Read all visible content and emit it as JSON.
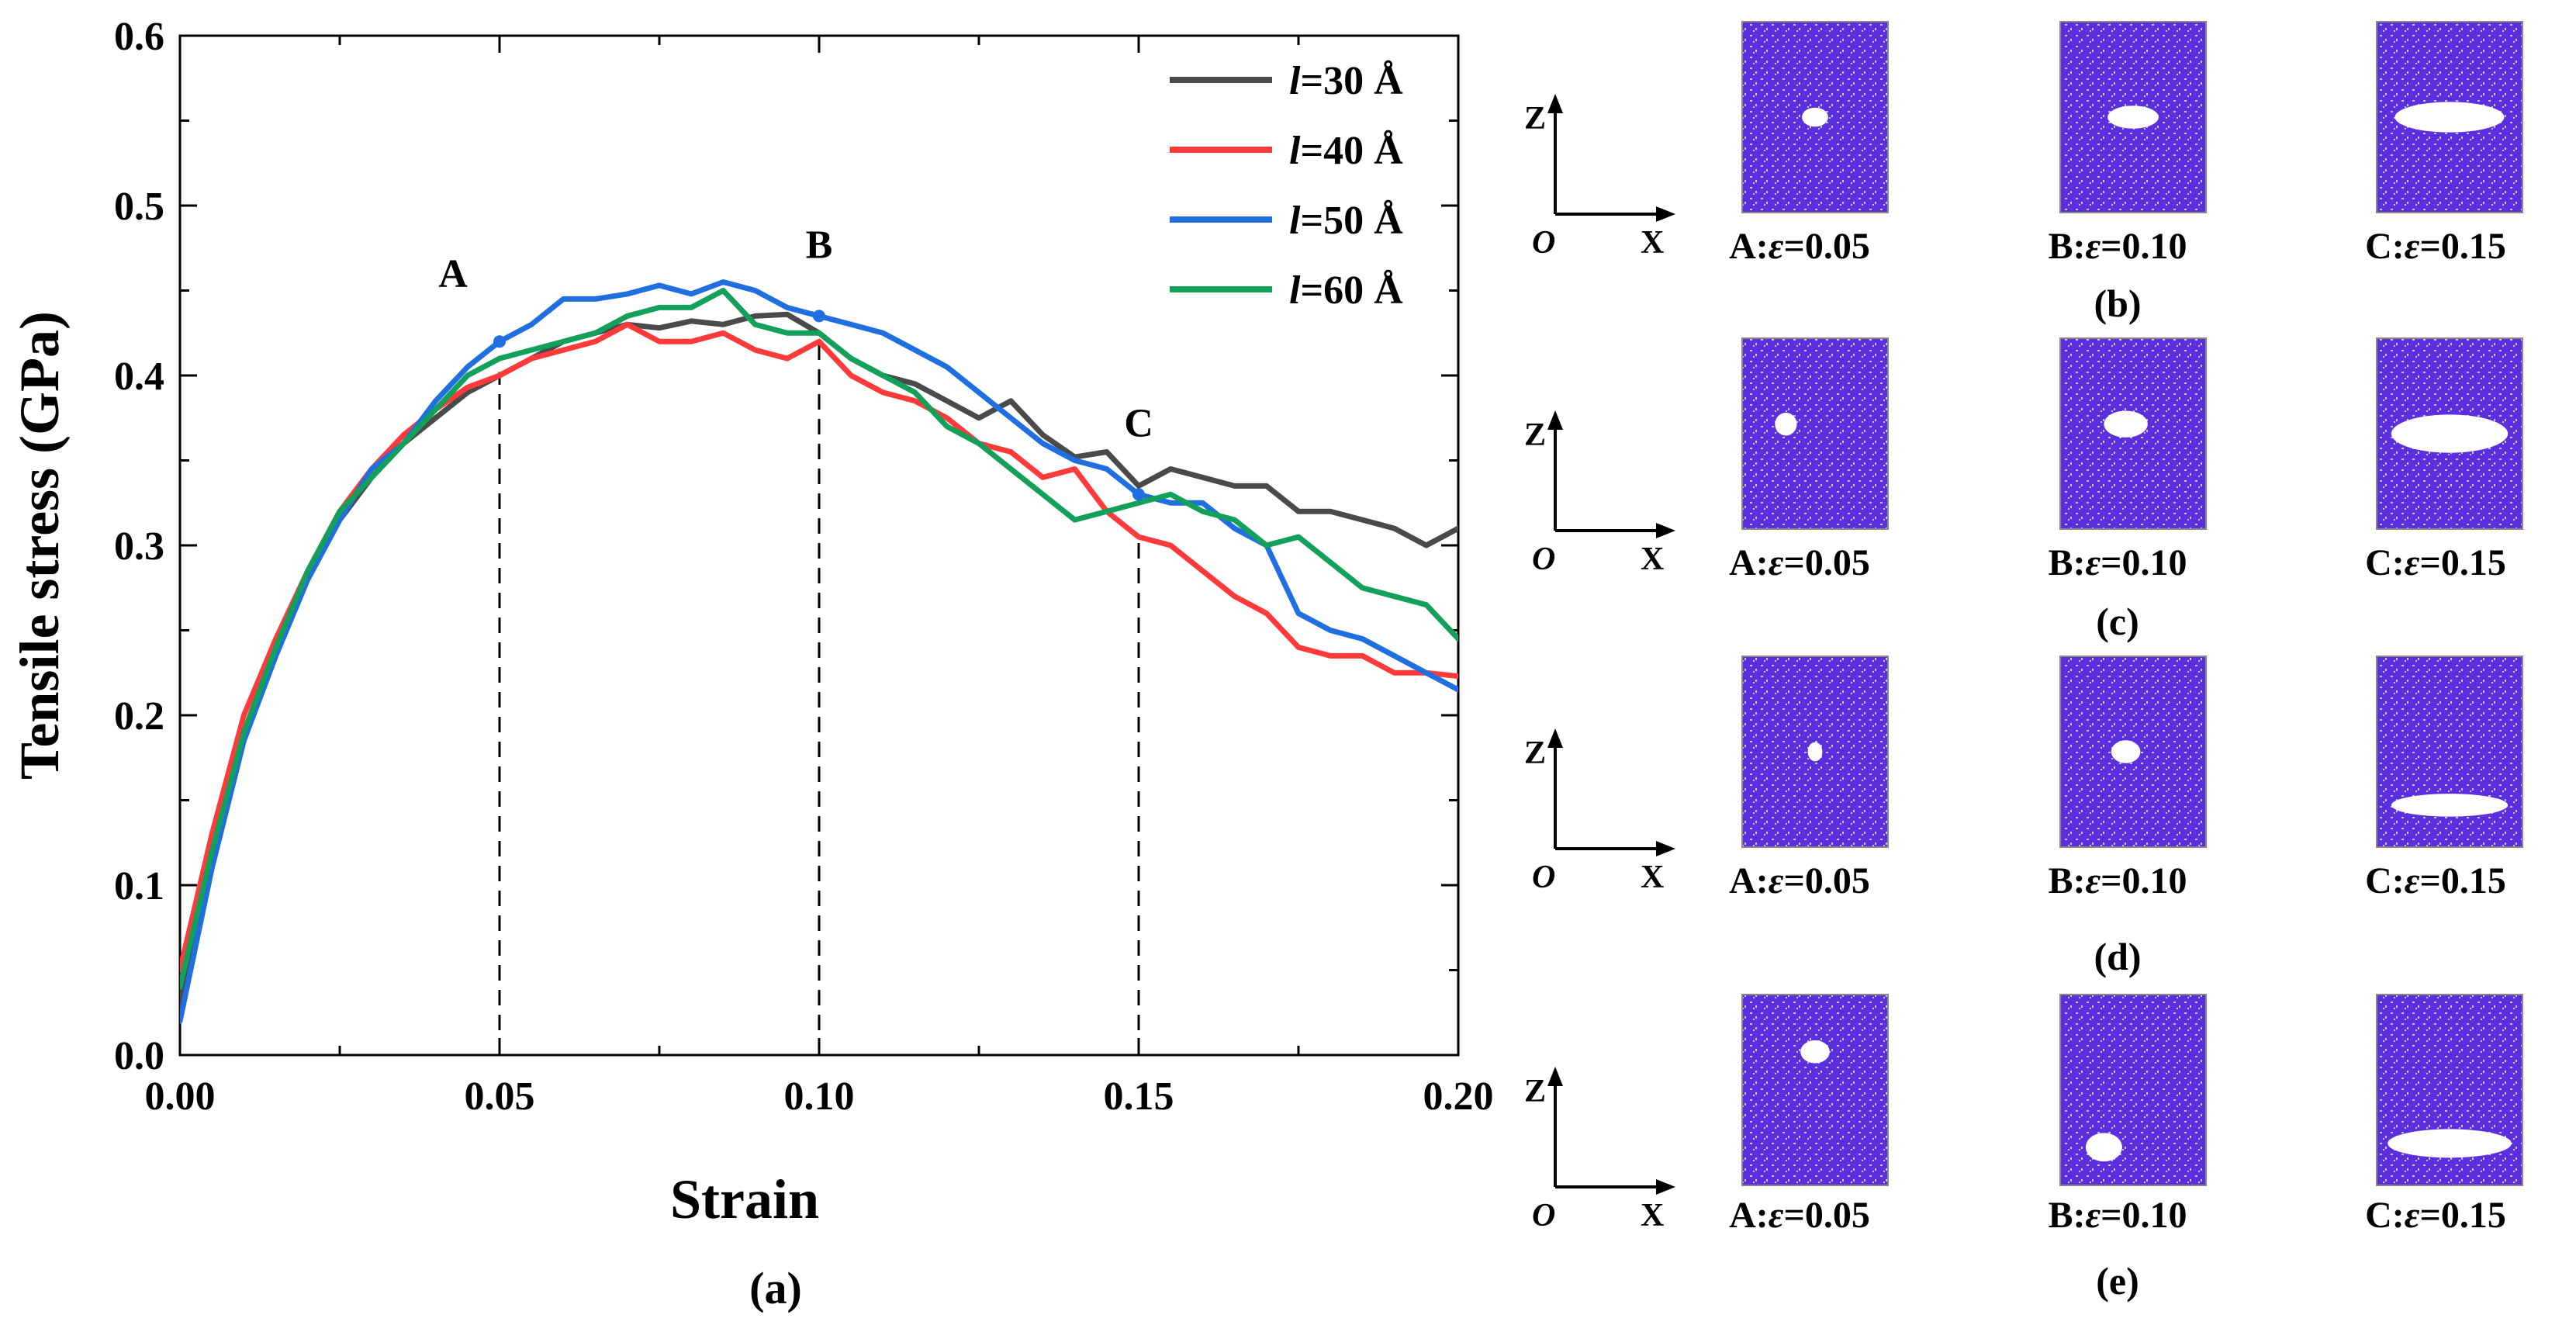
{
  "chart_data": {
    "type": "line",
    "panel_label": "(a)",
    "xlabel": "Strain",
    "ylabel": "Tensile stress (GPa)",
    "xlim": [
      0.0,
      0.2
    ],
    "ylim": [
      0.0,
      0.6
    ],
    "xticks": [
      0.0,
      0.05,
      0.1,
      0.15,
      0.2
    ],
    "yticks": [
      0.0,
      0.1,
      0.2,
      0.3,
      0.4,
      0.5,
      0.6
    ],
    "xtick_labels": [
      "0.00",
      "0.05",
      "0.10",
      "0.15",
      "0.20"
    ],
    "ytick_labels": [
      "0.0",
      "0.1",
      "0.2",
      "0.3",
      "0.4",
      "0.5",
      "0.6"
    ],
    "grid": false,
    "legend_position": "top-right",
    "series": [
      {
        "name": "l=30 Å",
        "var": "l",
        "rest": "=30 Å",
        "color": "#4a4a4a",
        "x": [
          0,
          0.005,
          0.01,
          0.015,
          0.02,
          0.025,
          0.03,
          0.035,
          0.04,
          0.045,
          0.05,
          0.055,
          0.06,
          0.065,
          0.07,
          0.075,
          0.08,
          0.085,
          0.09,
          0.095,
          0.1,
          0.105,
          0.11,
          0.115,
          0.12,
          0.125,
          0.13,
          0.135,
          0.14,
          0.145,
          0.15,
          0.155,
          0.16,
          0.165,
          0.17,
          0.175,
          0.18,
          0.185,
          0.19,
          0.195,
          0.2
        ],
        "y": [
          0.03,
          0.12,
          0.19,
          0.24,
          0.28,
          0.315,
          0.34,
          0.36,
          0.375,
          0.39,
          0.4,
          0.41,
          0.42,
          0.425,
          0.43,
          0.428,
          0.432,
          0.43,
          0.435,
          0.436,
          0.425,
          0.41,
          0.4,
          0.395,
          0.385,
          0.375,
          0.385,
          0.365,
          0.352,
          0.355,
          0.335,
          0.345,
          0.34,
          0.335,
          0.335,
          0.32,
          0.32,
          0.315,
          0.31,
          0.3,
          0.31
        ]
      },
      {
        "name": "l=40 Å",
        "var": "l",
        "rest": "=40 Å",
        "color": "#ff3a3a",
        "x": [
          0,
          0.005,
          0.01,
          0.015,
          0.02,
          0.025,
          0.03,
          0.035,
          0.04,
          0.045,
          0.05,
          0.055,
          0.06,
          0.065,
          0.07,
          0.075,
          0.08,
          0.085,
          0.09,
          0.095,
          0.1,
          0.105,
          0.11,
          0.115,
          0.12,
          0.125,
          0.13,
          0.135,
          0.14,
          0.145,
          0.15,
          0.155,
          0.16,
          0.165,
          0.17,
          0.175,
          0.18,
          0.185,
          0.19,
          0.195,
          0.2
        ],
        "y": [
          0.05,
          0.13,
          0.2,
          0.245,
          0.285,
          0.32,
          0.345,
          0.365,
          0.38,
          0.393,
          0.4,
          0.41,
          0.415,
          0.42,
          0.43,
          0.42,
          0.42,
          0.425,
          0.415,
          0.41,
          0.42,
          0.4,
          0.39,
          0.385,
          0.375,
          0.36,
          0.355,
          0.34,
          0.345,
          0.32,
          0.305,
          0.3,
          0.285,
          0.27,
          0.26,
          0.24,
          0.235,
          0.235,
          0.225,
          0.225,
          0.223
        ]
      },
      {
        "name": "l=50 Å",
        "var": "l",
        "rest": "=50 Å",
        "color": "#1f6fe0",
        "x": [
          0,
          0.005,
          0.01,
          0.015,
          0.02,
          0.025,
          0.03,
          0.035,
          0.04,
          0.045,
          0.05,
          0.055,
          0.06,
          0.065,
          0.07,
          0.075,
          0.08,
          0.085,
          0.09,
          0.095,
          0.1,
          0.105,
          0.11,
          0.115,
          0.12,
          0.125,
          0.13,
          0.135,
          0.14,
          0.145,
          0.15,
          0.155,
          0.16,
          0.165,
          0.17,
          0.175,
          0.18,
          0.185,
          0.19,
          0.195,
          0.2
        ],
        "y": [
          0.02,
          0.11,
          0.185,
          0.235,
          0.28,
          0.315,
          0.345,
          0.36,
          0.385,
          0.405,
          0.42,
          0.43,
          0.445,
          0.445,
          0.448,
          0.453,
          0.448,
          0.455,
          0.45,
          0.44,
          0.435,
          0.43,
          0.425,
          0.415,
          0.405,
          0.39,
          0.375,
          0.36,
          0.35,
          0.345,
          0.33,
          0.325,
          0.325,
          0.31,
          0.3,
          0.26,
          0.25,
          0.245,
          0.235,
          0.225,
          0.215
        ]
      },
      {
        "name": "l=60 Å",
        "var": "l",
        "rest": "=60 Å",
        "color": "#12a05a",
        "x": [
          0,
          0.005,
          0.01,
          0.015,
          0.02,
          0.025,
          0.03,
          0.035,
          0.04,
          0.045,
          0.05,
          0.055,
          0.06,
          0.065,
          0.07,
          0.075,
          0.08,
          0.085,
          0.09,
          0.095,
          0.1,
          0.105,
          0.11,
          0.115,
          0.12,
          0.125,
          0.13,
          0.135,
          0.14,
          0.145,
          0.15,
          0.155,
          0.16,
          0.165,
          0.17,
          0.175,
          0.18,
          0.185,
          0.19,
          0.195,
          0.2
        ],
        "y": [
          0.04,
          0.12,
          0.19,
          0.24,
          0.285,
          0.32,
          0.34,
          0.36,
          0.38,
          0.4,
          0.41,
          0.415,
          0.42,
          0.425,
          0.435,
          0.44,
          0.44,
          0.45,
          0.43,
          0.425,
          0.425,
          0.41,
          0.4,
          0.39,
          0.37,
          0.36,
          0.345,
          0.33,
          0.315,
          0.32,
          0.325,
          0.33,
          0.32,
          0.315,
          0.3,
          0.305,
          0.29,
          0.275,
          0.27,
          0.265,
          0.245
        ]
      }
    ],
    "reference_lines": [
      {
        "x": 0.05,
        "label": "A",
        "marker_y": 0.42
      },
      {
        "x": 0.1,
        "label": "B",
        "marker_y": 0.435
      },
      {
        "x": 0.15,
        "label": "C",
        "marker_y": 0.33
      }
    ],
    "dashed_to_y": [
      0.402,
      0.425,
      0.302
    ]
  },
  "right_panels": [
    {
      "panel_label": "(b)",
      "axis_labels": {
        "z": "Z",
        "origin": "O",
        "x": "X"
      },
      "snapshots": [
        {
          "label_prefix": "A:",
          "var": "ε",
          "value": "=0.05"
        },
        {
          "label_prefix": "B:",
          "var": "ε",
          "value": "=0.10"
        },
        {
          "label_prefix": "C:",
          "var": "ε",
          "value": "=0.15"
        }
      ]
    },
    {
      "panel_label": "(c)",
      "axis_labels": {
        "z": "Z",
        "origin": "O",
        "x": "X"
      },
      "snapshots": [
        {
          "label_prefix": "A:",
          "var": "ε",
          "value": "=0.05"
        },
        {
          "label_prefix": "B:",
          "var": "ε",
          "value": "=0.10"
        },
        {
          "label_prefix": "C:",
          "var": "ε",
          "value": "=0.15"
        }
      ]
    },
    {
      "panel_label": "(d)",
      "axis_labels": {
        "z": "Z",
        "origin": "O",
        "x": "X"
      },
      "snapshots": [
        {
          "label_prefix": "A:",
          "var": "ε",
          "value": "=0.05"
        },
        {
          "label_prefix": "B:",
          "var": "ε",
          "value": "=0.10"
        },
        {
          "label_prefix": "C:",
          "var": "ε",
          "value": "=0.15"
        }
      ]
    },
    {
      "panel_label": "(e)",
      "axis_labels": {
        "z": "Z",
        "origin": "O",
        "x": "X"
      },
      "snapshots": [
        {
          "label_prefix": "A:",
          "var": "ε",
          "value": "=0.05"
        },
        {
          "label_prefix": "B:",
          "var": "ε",
          "value": "=0.10"
        },
        {
          "label_prefix": "C:",
          "var": "ε",
          "value": "=0.15"
        }
      ]
    }
  ],
  "colors": {
    "atoms": "#5b2fe0",
    "void": "#c8c8c8",
    "axis": "#000000"
  }
}
